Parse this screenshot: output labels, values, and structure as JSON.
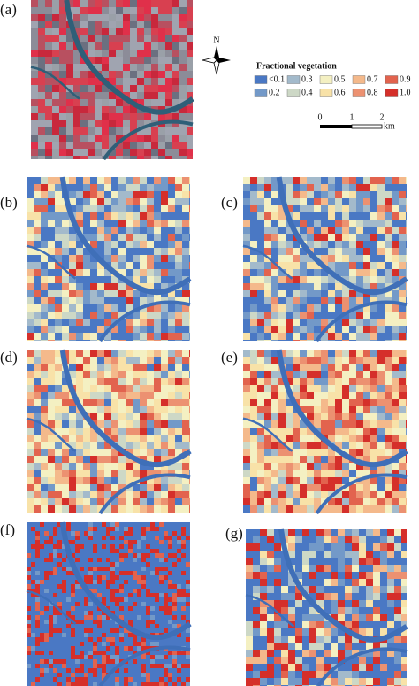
{
  "panels": [
    {
      "label": "(a)"
    },
    {
      "label": "(b)"
    },
    {
      "label": "(c)"
    },
    {
      "label": "(d)"
    },
    {
      "label": "(e)"
    },
    {
      "label": "(f)"
    },
    {
      "label": "(g)"
    }
  ],
  "north": {
    "label": "N"
  },
  "legend": {
    "title": "Fractional vegetation",
    "items": [
      {
        "label": "<0.1",
        "color": "#4a78c4"
      },
      {
        "label": "0.2",
        "color": "#7399c8"
      },
      {
        "label": "0.3",
        "color": "#a3bacb"
      },
      {
        "label": "0.4",
        "color": "#cdd8c6"
      },
      {
        "label": "0.5",
        "color": "#f4f0c2"
      },
      {
        "label": "0.6",
        "color": "#f8e2a8"
      },
      {
        "label": "0.7",
        "color": "#f4b98b"
      },
      {
        "label": "0.8",
        "color": "#ec9171"
      },
      {
        "label": "0.9",
        "color": "#e2634e"
      },
      {
        "label": "1.0",
        "color": "#d52f2a"
      }
    ]
  },
  "scale_bar": {
    "labels": [
      "0",
      "1",
      "2"
    ],
    "unit": "km"
  }
}
